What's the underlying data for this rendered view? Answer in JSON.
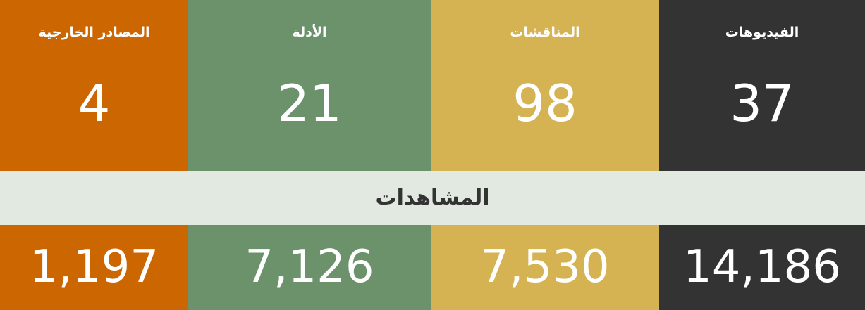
{
  "stats": {
    "columns": [
      {
        "title": "الفيديوهات",
        "count": "37",
        "views": "14,186"
      },
      {
        "title": "المناقشات",
        "count": "98",
        "views": "7,530"
      },
      {
        "title": "الأدلة",
        "count": "21",
        "views": "7,126"
      },
      {
        "title": "المصادر الخارجية",
        "count": "4",
        "views": "1,197"
      }
    ],
    "views_label": "المشاهدات"
  }
}
